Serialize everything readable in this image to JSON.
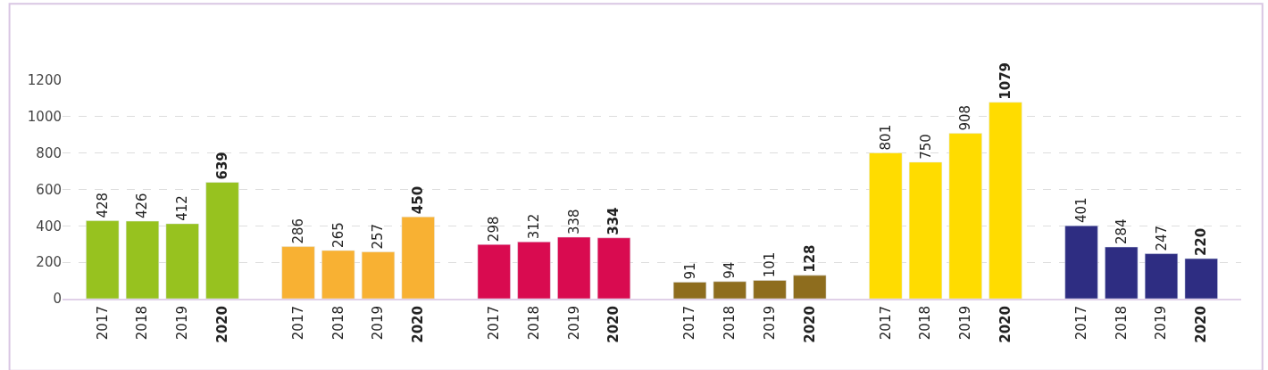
{
  "chart_data": {
    "type": "bar",
    "categories": [
      "2017",
      "2018",
      "2019",
      "2020",
      "2017",
      "2018",
      "2019",
      "2020",
      "2017",
      "2018",
      "2019",
      "2020",
      "2017",
      "2018",
      "2019",
      "2020",
      "2017",
      "2018",
      "2019",
      "2020",
      "2017",
      "2018",
      "2019",
      "2020"
    ],
    "values": [
      428,
      426,
      412,
      639,
      286,
      265,
      257,
      450,
      298,
      312,
      338,
      334,
      91,
      94,
      101,
      128,
      801,
      750,
      908,
      1079,
      401,
      284,
      247,
      220
    ],
    "colors": [
      "#97c21f",
      "#97c21f",
      "#97c21f",
      "#97c21f",
      "#f8b133",
      "#f8b133",
      "#f8b133",
      "#f8b133",
      "#d90b50",
      "#d90b50",
      "#d90b50",
      "#d90b50",
      "#8e6d1e",
      "#8e6d1e",
      "#8e6d1e",
      "#8e6d1e",
      "#ffdc00",
      "#ffdc00",
      "#ffdc00",
      "#ffdc00",
      "#2e2d82",
      "#2e2d82",
      "#2e2d82",
      "#2e2d82"
    ],
    "ylim": [
      0,
      1200
    ],
    "yticks": [
      0,
      200,
      400,
      600,
      800,
      1000,
      1200
    ],
    "grid": "y",
    "data_labels": true
  }
}
